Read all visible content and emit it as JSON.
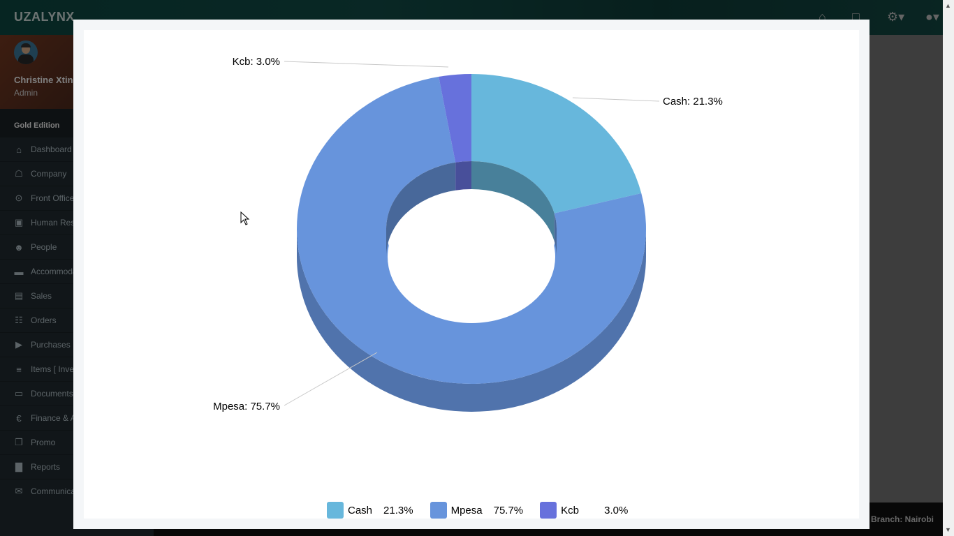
{
  "app": {
    "brand": "UZALYNX"
  },
  "topbar": {
    "icons": [
      "home-icon",
      "monitor-icon",
      "gear-icon",
      "user-icon"
    ]
  },
  "profile": {
    "name": "Christine Xtine",
    "role": "Admin"
  },
  "sidebar": {
    "edition": "Gold Edition",
    "items": [
      {
        "label": "Dashboard",
        "icon": "home-icon"
      },
      {
        "label": "Company",
        "icon": "bank-icon"
      },
      {
        "label": "Front Office",
        "icon": "concierge-icon"
      },
      {
        "label": "Human Resources",
        "icon": "briefcase-icon"
      },
      {
        "label": "People",
        "icon": "users-icon"
      },
      {
        "label": "Accommodation",
        "icon": "bed-icon"
      },
      {
        "label": "Sales",
        "icon": "receipt-icon"
      },
      {
        "label": "Orders",
        "icon": "cart-icon"
      },
      {
        "label": "Purchases",
        "icon": "truck-icon"
      },
      {
        "label": "Items [ Inventory ]",
        "icon": "database-icon"
      },
      {
        "label": "Documents",
        "icon": "folder-icon"
      },
      {
        "label": "Finance & Accounts",
        "icon": "euro-icon"
      },
      {
        "label": "Promo",
        "icon": "gift-icon"
      },
      {
        "label": "Reports",
        "icon": "bar-chart-icon"
      },
      {
        "label": "Communication",
        "icon": "envelope-icon"
      }
    ]
  },
  "footer": {
    "branch": "Branch: Nairobi"
  },
  "chart_data": {
    "type": "pie",
    "style": "3d-donut",
    "categories": [
      "Cash",
      "Mpesa",
      "Kcb"
    ],
    "values": [
      21.3,
      75.7,
      3.0
    ],
    "unit": "%",
    "colors": [
      "#67b7dc",
      "#6794dc",
      "#6771dc"
    ],
    "slice_labels": [
      "Cash: 21.3%",
      "Mpesa: 75.7%",
      "Kcb: 3.0%"
    ],
    "legend": {
      "position": "bottom",
      "entries": [
        {
          "name": "Cash",
          "value": "21.3%"
        },
        {
          "name": "Mpesa",
          "value": "75.7%"
        },
        {
          "name": "Kcb",
          "value": "3.0%"
        }
      ]
    }
  }
}
